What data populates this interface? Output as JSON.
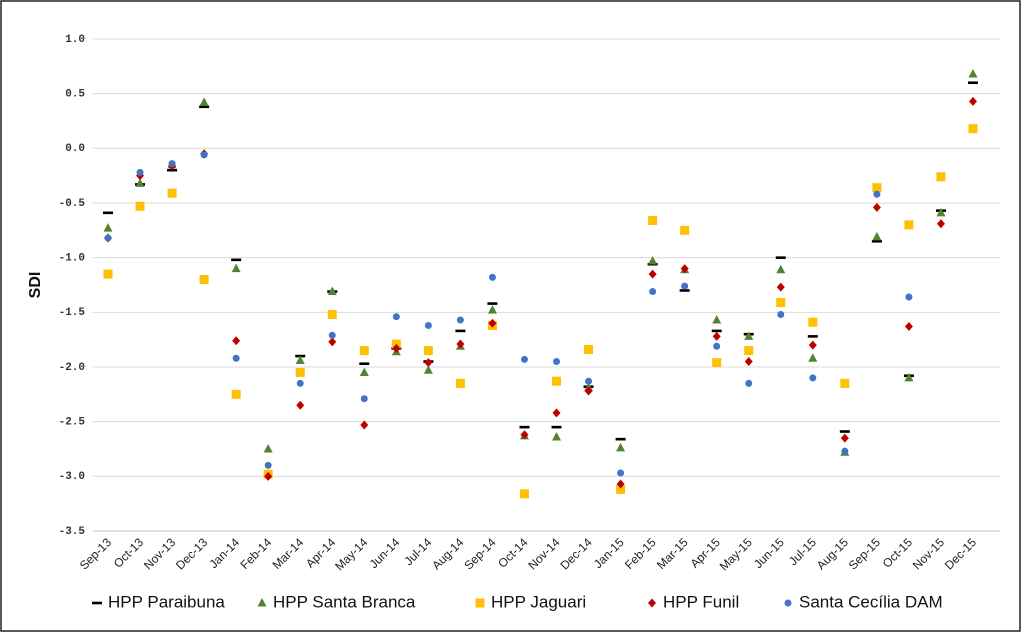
{
  "chart_data": {
    "type": "scatter",
    "y_label": "SDI",
    "categories": [
      "Sep-13",
      "Oct-13",
      "Nov-13",
      "Dec-13",
      "Jan-14",
      "Feb-14",
      "Mar-14",
      "Apr-14",
      "May-14",
      "Jun-14",
      "Jul-14",
      "Aug-14",
      "Sep-14",
      "Oct-14",
      "Nov-14",
      "Dec-14",
      "Jan-15",
      "Feb-15",
      "Mar-15",
      "Apr-15",
      "May-15",
      "Jun-15",
      "Jul-15",
      "Aug-15",
      "Sep-15",
      "Oct-15",
      "Nov-15",
      "Dec-15"
    ],
    "ylim": [
      -3.5,
      1
    ],
    "yticks": [
      {
        "value": 1,
        "label": "1.0"
      },
      0.5,
      {
        "value": 0,
        "label": "0.0"
      },
      -0.5,
      {
        "value": -1,
        "label": "-1.0"
      },
      -1.5,
      {
        "value": -2,
        "label": "-2.0"
      },
      -2.5,
      {
        "value": -3,
        "label": "-3.0"
      },
      -3.5
    ],
    "grid": true,
    "legend": "bottom",
    "series": [
      {
        "name": "HPP Paraibuna",
        "color": "#000000",
        "marker": "dash",
        "values": [
          -0.59,
          -0.33,
          -0.2,
          0.38,
          -1.02,
          null,
          -1.9,
          -1.31,
          -1.97,
          -1.83,
          -1.95,
          -1.67,
          -1.42,
          -2.55,
          -2.55,
          -2.18,
          -2.66,
          -1.06,
          -1.3,
          -1.67,
          -1.7,
          -1.0,
          -1.72,
          -2.59,
          -0.85,
          -2.08,
          -0.57,
          0.6
        ]
      },
      {
        "name": "HPP Santa Branca",
        "color": "#548235",
        "marker": "triangle",
        "values": [
          -0.73,
          -0.32,
          -0.15,
          0.42,
          -1.1,
          -2.75,
          -1.94,
          -1.31,
          -2.05,
          -1.86,
          -2.03,
          -1.81,
          -1.48,
          -2.63,
          -2.64,
          -2.19,
          -2.74,
          -1.03,
          -1.11,
          -1.57,
          -1.72,
          -1.11,
          -1.92,
          -2.78,
          -0.81,
          -2.1,
          -0.59,
          0.68
        ]
      },
      {
        "name": "HPP Jaguari",
        "color": "#ffc000",
        "marker": "square",
        "values": [
          -1.15,
          -0.53,
          -0.41,
          -1.2,
          -2.25,
          -2.98,
          -2.05,
          -1.52,
          -1.85,
          -1.79,
          -1.85,
          -2.15,
          -1.62,
          -3.16,
          -2.13,
          -1.84,
          -3.12,
          -0.66,
          -0.75,
          -1.96,
          -1.85,
          -1.41,
          -1.59,
          -2.15,
          -0.36,
          -0.7,
          -0.26,
          0.18
        ]
      },
      {
        "name": "HPP Funil",
        "color": "#c00000",
        "marker": "diamond",
        "values": [
          -0.82,
          -0.25,
          -0.16,
          -0.05,
          -1.76,
          -3.0,
          -2.35,
          -1.77,
          -2.53,
          -1.83,
          -1.96,
          -1.79,
          -1.6,
          -2.62,
          -2.42,
          -2.22,
          -3.07,
          -1.15,
          -1.1,
          -1.72,
          -1.95,
          -1.27,
          -1.8,
          -2.65,
          -0.54,
          -1.63,
          -0.69,
          0.43
        ]
      },
      {
        "name": "Santa Cecília DAM",
        "color": "#4472c4",
        "marker": "circle",
        "values": [
          -0.82,
          -0.22,
          -0.14,
          -0.06,
          -1.92,
          -2.9,
          -2.15,
          -1.71,
          -2.29,
          -1.54,
          -1.62,
          -1.57,
          -1.18,
          -1.93,
          -1.95,
          -2.13,
          -2.97,
          -1.31,
          -1.26,
          -1.81,
          -2.15,
          -1.52,
          -2.1,
          -2.77,
          -0.42,
          -1.36,
          null,
          null
        ]
      }
    ]
  }
}
